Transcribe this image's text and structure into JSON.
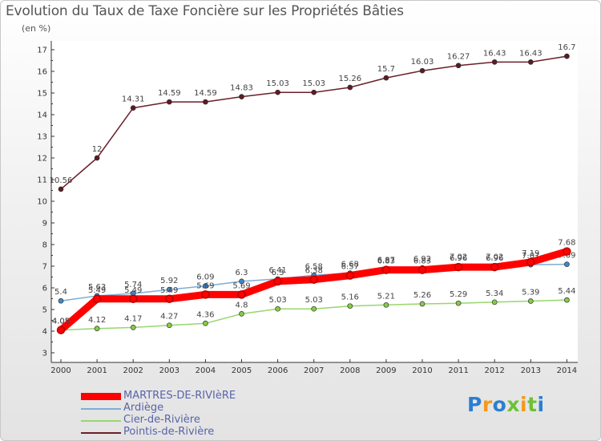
{
  "header": {
    "title": "Evolution du Taux de Taxe Foncière sur les Propriétés Bâties",
    "unit": "(en %)"
  },
  "chart_data": {
    "type": "line",
    "title": "Evolution du Taux de Taxe Foncière sur les Propriétés Bâties",
    "ylabel": "(en %)",
    "xlabel": "",
    "ylim": [
      3,
      17
    ],
    "yticks": [
      "3",
      "4",
      "5",
      "6",
      "7",
      "8",
      "9",
      "10",
      "11",
      "12",
      "13",
      "14",
      "15",
      "16",
      "17"
    ],
    "grid": false,
    "legend": "bottom-left",
    "x": [
      "2000",
      "2001",
      "2002",
      "2003",
      "2004",
      "2005",
      "2006",
      "2007",
      "2008",
      "2009",
      "2010",
      "2011",
      "2012",
      "2013",
      "2014"
    ],
    "series": [
      {
        "name": "Pointis-de-Rivière",
        "color": "#6b1f2a",
        "marker": "#5e1b22",
        "width": 1.5,
        "values": [
          10.56,
          12,
          14.31,
          14.59,
          14.59,
          14.83,
          15.03,
          15.03,
          15.26,
          15.7,
          16.03,
          16.27,
          16.43,
          16.43,
          16.7
        ],
        "labels": [
          "10.56",
          "12",
          "14.31",
          "14.59",
          "14.59",
          "14.83",
          "15.03",
          "15.03",
          "15.26",
          "15.7",
          "16.03",
          "16.27",
          "16.43",
          "16.43",
          "16.7"
        ]
      },
      {
        "name": "Cier-de-Rivière",
        "color": "#99d66e",
        "marker": "#86cc47",
        "width": 1.5,
        "values": [
          4.05,
          4.12,
          4.17,
          4.27,
          4.36,
          4.8,
          5.03,
          5.03,
          5.16,
          5.21,
          5.26,
          5.29,
          5.34,
          5.39,
          5.44
        ],
        "labels": [
          "4.05",
          "4.12",
          "4.17",
          "4.27",
          "4.36",
          "4.8",
          "5.03",
          "5.03",
          "5.16",
          "5.21",
          "5.26",
          "5.29",
          "5.34",
          "5.39",
          "5.44"
        ]
      },
      {
        "name": "Ardiège",
        "color": "#7caed6",
        "marker": "#3f87cc",
        "width": 1.5,
        "values": [
          5.4,
          5.63,
          5.74,
          5.92,
          6.09,
          6.3,
          6.41,
          6.58,
          6.68,
          6.87,
          6.92,
          7.02,
          7.02,
          7.07,
          7.09
        ],
        "labels": [
          "5.4",
          "5.63",
          "5.74",
          "5.92",
          "6.09",
          "6.3",
          "6.41",
          "6.58",
          "6.68",
          "6.87",
          "6.92",
          "7.02",
          "7.02",
          "7.07",
          "7.09"
        ]
      },
      {
        "name": "MARTRES-DE-RIVIèRE",
        "color": "#ff0000",
        "marker": "#ff0000",
        "width": 9,
        "values": [
          4.05,
          5.49,
          5.49,
          5.49,
          5.69,
          5.69,
          6.3,
          6.38,
          6.57,
          6.83,
          6.83,
          6.96,
          6.96,
          7.19,
          7.68
        ],
        "labels": [
          "4.05",
          "5.49",
          "5.49",
          "5.49",
          "5.69",
          "5.69",
          "6.3",
          "6.38",
          "6.57",
          "6.83",
          "6.83",
          "6.96",
          "6.96",
          "7.19",
          "7.68"
        ]
      }
    ]
  },
  "legend": {
    "items": [
      {
        "label": "MARTRES-DE-RIVIèRE",
        "color": "#ff0000",
        "thick": true
      },
      {
        "label": "Ardiège",
        "color": "#7caed6",
        "thick": false
      },
      {
        "label": "Cier-de-Rivière",
        "color": "#99d66e",
        "thick": false
      },
      {
        "label": "Pointis-de-Rivière",
        "color": "#6b1f2a",
        "thick": false
      }
    ]
  },
  "logo": {
    "letters": [
      {
        "ch": "P",
        "color": "#2b7fd1"
      },
      {
        "ch": "r",
        "color": "#f39a1a"
      },
      {
        "ch": "o",
        "color": "#2b7fd1"
      },
      {
        "ch": "x",
        "color": "#6ec136"
      },
      {
        "ch": "i",
        "color": "#f39a1a"
      },
      {
        "ch": "t",
        "color": "#6ec136"
      },
      {
        "ch": "i",
        "color": "#2b7fd1"
      }
    ]
  }
}
